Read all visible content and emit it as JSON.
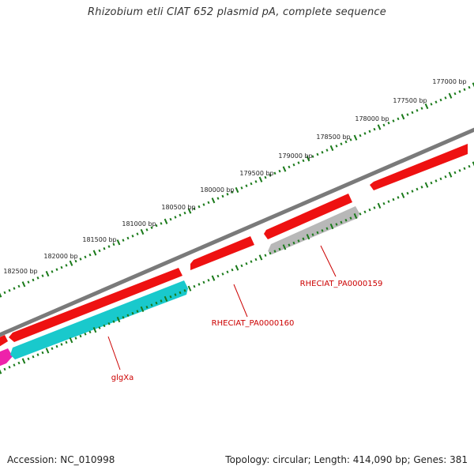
{
  "title": "Rhizobium etli CIAT 652 plasmid pA, complete sequence",
  "footer": {
    "accession": "Accession: NC_010998",
    "summary": "Topology: circular; Length: 414,090 bp; Genes: 381"
  },
  "ruler_labels": [
    "177000 bp",
    "177500 bp",
    "178000 bp",
    "178500 bp",
    "179000 bp",
    "179500 bp",
    "180000 bp",
    "180500 bp",
    "181000 bp",
    "181500 bp",
    "182000 bp",
    "182500 bp"
  ],
  "gene_labels": {
    "glgxa": "glgXa",
    "pa0000160": "RHECIAT_PA0000160",
    "pa0000159": "RHECIAT_PA0000159"
  },
  "colors": {
    "backbone": "#7a7a7a",
    "forward_cds": "#ee1111",
    "reverse_cds_cyan": "#19c9cc",
    "reverse_cds_gray": "#b8b8b8",
    "reverse_cds_magenta": "#ee22aa",
    "ruler_ticks": "#1a7a1a",
    "label_text": "#cc0000"
  }
}
